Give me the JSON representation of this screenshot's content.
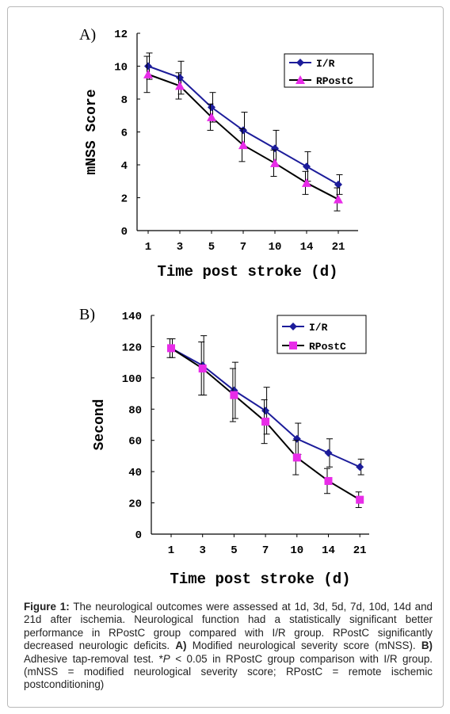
{
  "chart_data": [
    {
      "panel": "A)",
      "type": "line",
      "categories": [
        "1",
        "3",
        "5",
        "7",
        "10",
        "14",
        "21"
      ],
      "xlabel": "Time post stroke (d)",
      "ylabel": "mNSS Score",
      "ylim": [
        0,
        12
      ],
      "yticks": [
        "0",
        "2",
        "4",
        "6",
        "8",
        "10",
        "12"
      ],
      "legend": "top-right",
      "grid": false,
      "series": [
        {
          "name": "I/R",
          "marker": "diamond",
          "color": "#1c1c9a",
          "values": [
            10.0,
            9.3,
            7.5,
            6.1,
            5.0,
            3.9,
            2.8
          ],
          "err": [
            0.8,
            1.0,
            0.9,
            1.1,
            1.1,
            0.9,
            0.6
          ]
        },
        {
          "name": "RPostC",
          "marker": "triangle",
          "color": "#000000",
          "marker_color": "#e82ce8",
          "values": [
            9.5,
            8.8,
            6.9,
            5.2,
            4.1,
            2.9,
            1.9
          ],
          "err": [
            1.1,
            0.8,
            0.8,
            1.0,
            0.8,
            0.7,
            0.7
          ]
        }
      ]
    },
    {
      "panel": "B)",
      "type": "line",
      "categories": [
        "1",
        "3",
        "5",
        "7",
        "10",
        "14",
        "21"
      ],
      "xlabel": "Time post stroke (d)",
      "ylabel": "Second",
      "ylim": [
        0,
        140
      ],
      "yticks": [
        "0",
        "20",
        "40",
        "60",
        "80",
        "100",
        "120",
        "140"
      ],
      "legend": "top-right",
      "grid": false,
      "series": [
        {
          "name": "I/R",
          "marker": "diamond",
          "color": "#1c1c9a",
          "values": [
            119,
            108,
            92,
            79,
            61,
            52,
            43
          ],
          "err": [
            6,
            19,
            18,
            15,
            10,
            9,
            5
          ]
        },
        {
          "name": "RPostC",
          "marker": "square",
          "color": "#000000",
          "marker_color": "#e82ce8",
          "values": [
            119,
            106,
            89,
            72,
            49,
            34,
            22
          ],
          "err": [
            6,
            17,
            17,
            14,
            11,
            8,
            5
          ]
        }
      ]
    }
  ],
  "caption": {
    "figure_label": "Figure 1:",
    "text1": " The neurological outcomes were assessed at 1d, 3d, 5d, 7d, 10d, 14d and 21d after ischemia. Neurological function had a statistically significant better performance in RPostC group compared with I/R group. RPostC significantly decreased neurologic deficits. ",
    "label_a": "A)",
    "text2": " Modified neurological severity score (mNSS). ",
    "label_b": "B)",
    "text3": " Adhesive tap-removal test. *",
    "p_symbol": "P",
    "text4": " < 0.05 in RPostC group comparison with I/R group. (mNSS = modified neurological severity score; RPostC = remote ischemic postconditioning)"
  }
}
